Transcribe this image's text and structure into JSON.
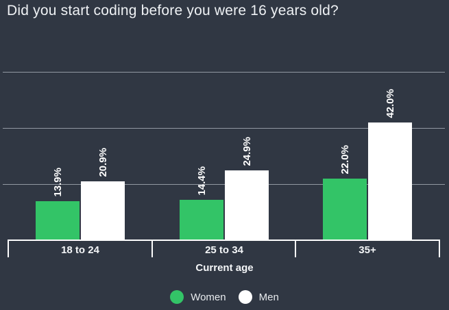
{
  "title": "Did you start coding before you were 16 years old?",
  "chart_data": {
    "type": "bar",
    "title": "Did you start coding before you were 16 years old?",
    "categories": [
      "18 to 24",
      "25 to 34",
      "35+"
    ],
    "series": [
      {
        "name": "Women",
        "color": "#33c467",
        "values": [
          13.9,
          14.4,
          22.0
        ],
        "labels": [
          "13.9%",
          "14.4%",
          "22.0%"
        ]
      },
      {
        "name": "Men",
        "color": "#ffffff",
        "values": [
          20.9,
          24.9,
          42.0
        ],
        "labels": [
          "20.9%",
          "24.9%",
          "42.0%"
        ]
      }
    ],
    "xlabel": "Current age",
    "ylabel": "",
    "ylim": [
      0,
      70
    ],
    "gridlines": [
      20,
      40,
      60
    ],
    "grid": true,
    "legend_position": "bottom",
    "colors": {
      "background": "#303743",
      "gridline": "#a4aab4",
      "axis": "#ffffff",
      "text": "#f4f6f8"
    }
  }
}
